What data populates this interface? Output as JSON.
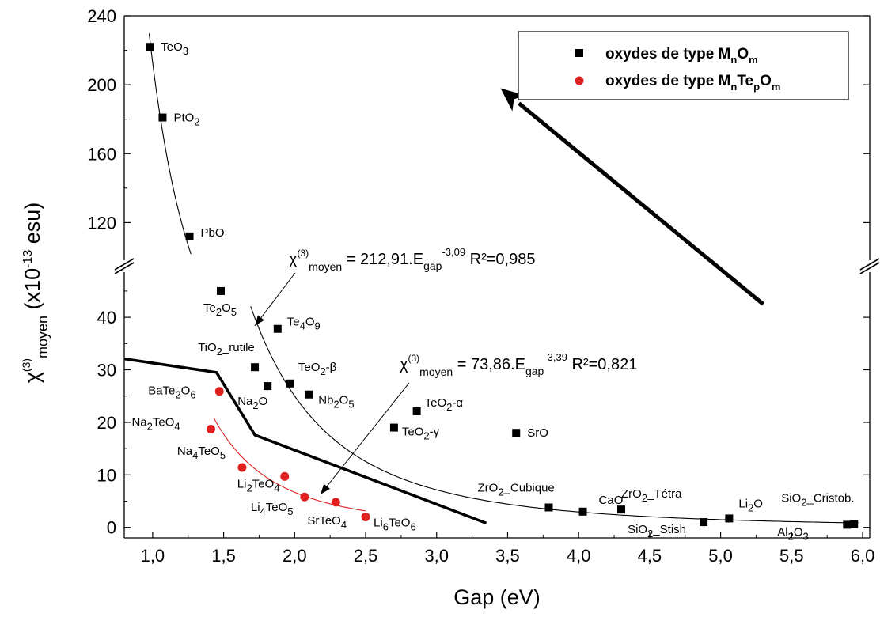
{
  "chart_data": {
    "type": "scatter",
    "title": "",
    "xlabel": "Gap (eV)",
    "ylabel": {
      "chi": "χ",
      "sup": "(3)",
      "sub": "moyen",
      "rest": " (x10",
      "exp": "-13",
      "unit": " esu)"
    },
    "xlim": [
      0.8,
      6.05
    ],
    "ylim_lower": [
      -2,
      48
    ],
    "ylim_upper": [
      100,
      240
    ],
    "y_axis_break": true,
    "x_ticks": [
      "1,0",
      "1,5",
      "2,0",
      "2,5",
      "3,0",
      "3,5",
      "4,0",
      "4,5",
      "5,0",
      "5,5",
      "6,0"
    ],
    "y_ticks_lower": [
      "0",
      "10",
      "20",
      "30",
      "40"
    ],
    "y_ticks_upper": [
      "120",
      "160",
      "200",
      "240"
    ],
    "grid": false,
    "legend_position": "top-right",
    "colors": {
      "series_mnom": "#000000",
      "series_mntepom": "#e02020",
      "fit_mntepom": "#e02020"
    },
    "series": [
      {
        "name": "oxydes de type MnOm",
        "marker": "square",
        "points": [
          {
            "x": 0.98,
            "y": 222,
            "label": "TeO3"
          },
          {
            "x": 1.07,
            "y": 181,
            "label": "PtO2"
          },
          {
            "x": 1.26,
            "y": 112,
            "label": "PbO"
          },
          {
            "x": 1.48,
            "y": 45.0,
            "label": "Te2O5"
          },
          {
            "x": 1.88,
            "y": 37.8,
            "label": "Te4O9"
          },
          {
            "x": 1.72,
            "y": 30.5,
            "label": "TiO2_rutile"
          },
          {
            "x": 1.81,
            "y": 26.9,
            "label": "Na2O"
          },
          {
            "x": 1.97,
            "y": 27.4,
            "label": "TeO2-β"
          },
          {
            "x": 2.1,
            "y": 25.3,
            "label": "Nb2O5"
          },
          {
            "x": 2.86,
            "y": 22.1,
            "label": "TeO2-α"
          },
          {
            "x": 2.7,
            "y": 19.0,
            "label": "TeO2-γ"
          },
          {
            "x": 3.56,
            "y": 18.0,
            "label": "SrO"
          },
          {
            "x": 3.79,
            "y": 3.8,
            "label": "ZrO2_Cubique"
          },
          {
            "x": 4.03,
            "y": 3.0,
            "label": "CaO"
          },
          {
            "x": 4.3,
            "y": 3.4,
            "label": "ZrO2_Tétra"
          },
          {
            "x": 4.88,
            "y": 1.0,
            "label": "SiO2_Stish"
          },
          {
            "x": 5.06,
            "y": 1.7,
            "label": "Li2O"
          },
          {
            "x": 5.94,
            "y": 0.6,
            "label": "SiO2_Cristob."
          },
          {
            "x": 5.89,
            "y": 0.5,
            "label": "Al2O3"
          }
        ]
      },
      {
        "name": "oxydes de type MnTepOm",
        "marker": "circle",
        "points": [
          {
            "x": 1.47,
            "y": 25.9,
            "label": "BaTe2O6"
          },
          {
            "x": 1.41,
            "y": 18.7,
            "label": "Na2TeO4"
          },
          {
            "x": 1.63,
            "y": 11.4,
            "label": "Na4TeO5"
          },
          {
            "x": 1.93,
            "y": 9.7,
            "label": "Li2TeO4"
          },
          {
            "x": 2.07,
            "y": 5.8,
            "label": "Li4TeO5"
          },
          {
            "x": 2.29,
            "y": 4.8,
            "label": "SrTeO4"
          },
          {
            "x": 2.5,
            "y": 2.0,
            "label": "Li6TeO6"
          }
        ]
      }
    ],
    "fits": [
      {
        "coef": 212.91,
        "exp": -3.09,
        "equation": "= 212,91.E",
        "equation_sub": "gap",
        "equation_exp": "-3,09",
        "r2": " R²=0,985"
      },
      {
        "coef": 73.86,
        "exp": -3.39,
        "equation": "= 73,86.E",
        "equation_sub": "gap",
        "equation_exp": "-3,39",
        "r2": " R²=0,821"
      }
    ],
    "boundary_line": [
      [
        0.8,
        32.1
      ],
      [
        1.45,
        29.5
      ],
      [
        1.72,
        17.6
      ],
      [
        3.35,
        0.8
      ]
    ],
    "trend_arrow": {
      "from": [
        5.3,
        42.5
      ],
      "to": [
        3.45,
        198
      ]
    },
    "legend": {
      "items": [
        {
          "text": "oxydes de type M",
          "sub1": "n",
          "mid": "O",
          "sub2": "m"
        },
        {
          "text": "oxydes de type M",
          "sub1": "n",
          "mid": "Te",
          "sub2": "p",
          "tail": "O",
          "sub3": "m"
        }
      ]
    }
  }
}
